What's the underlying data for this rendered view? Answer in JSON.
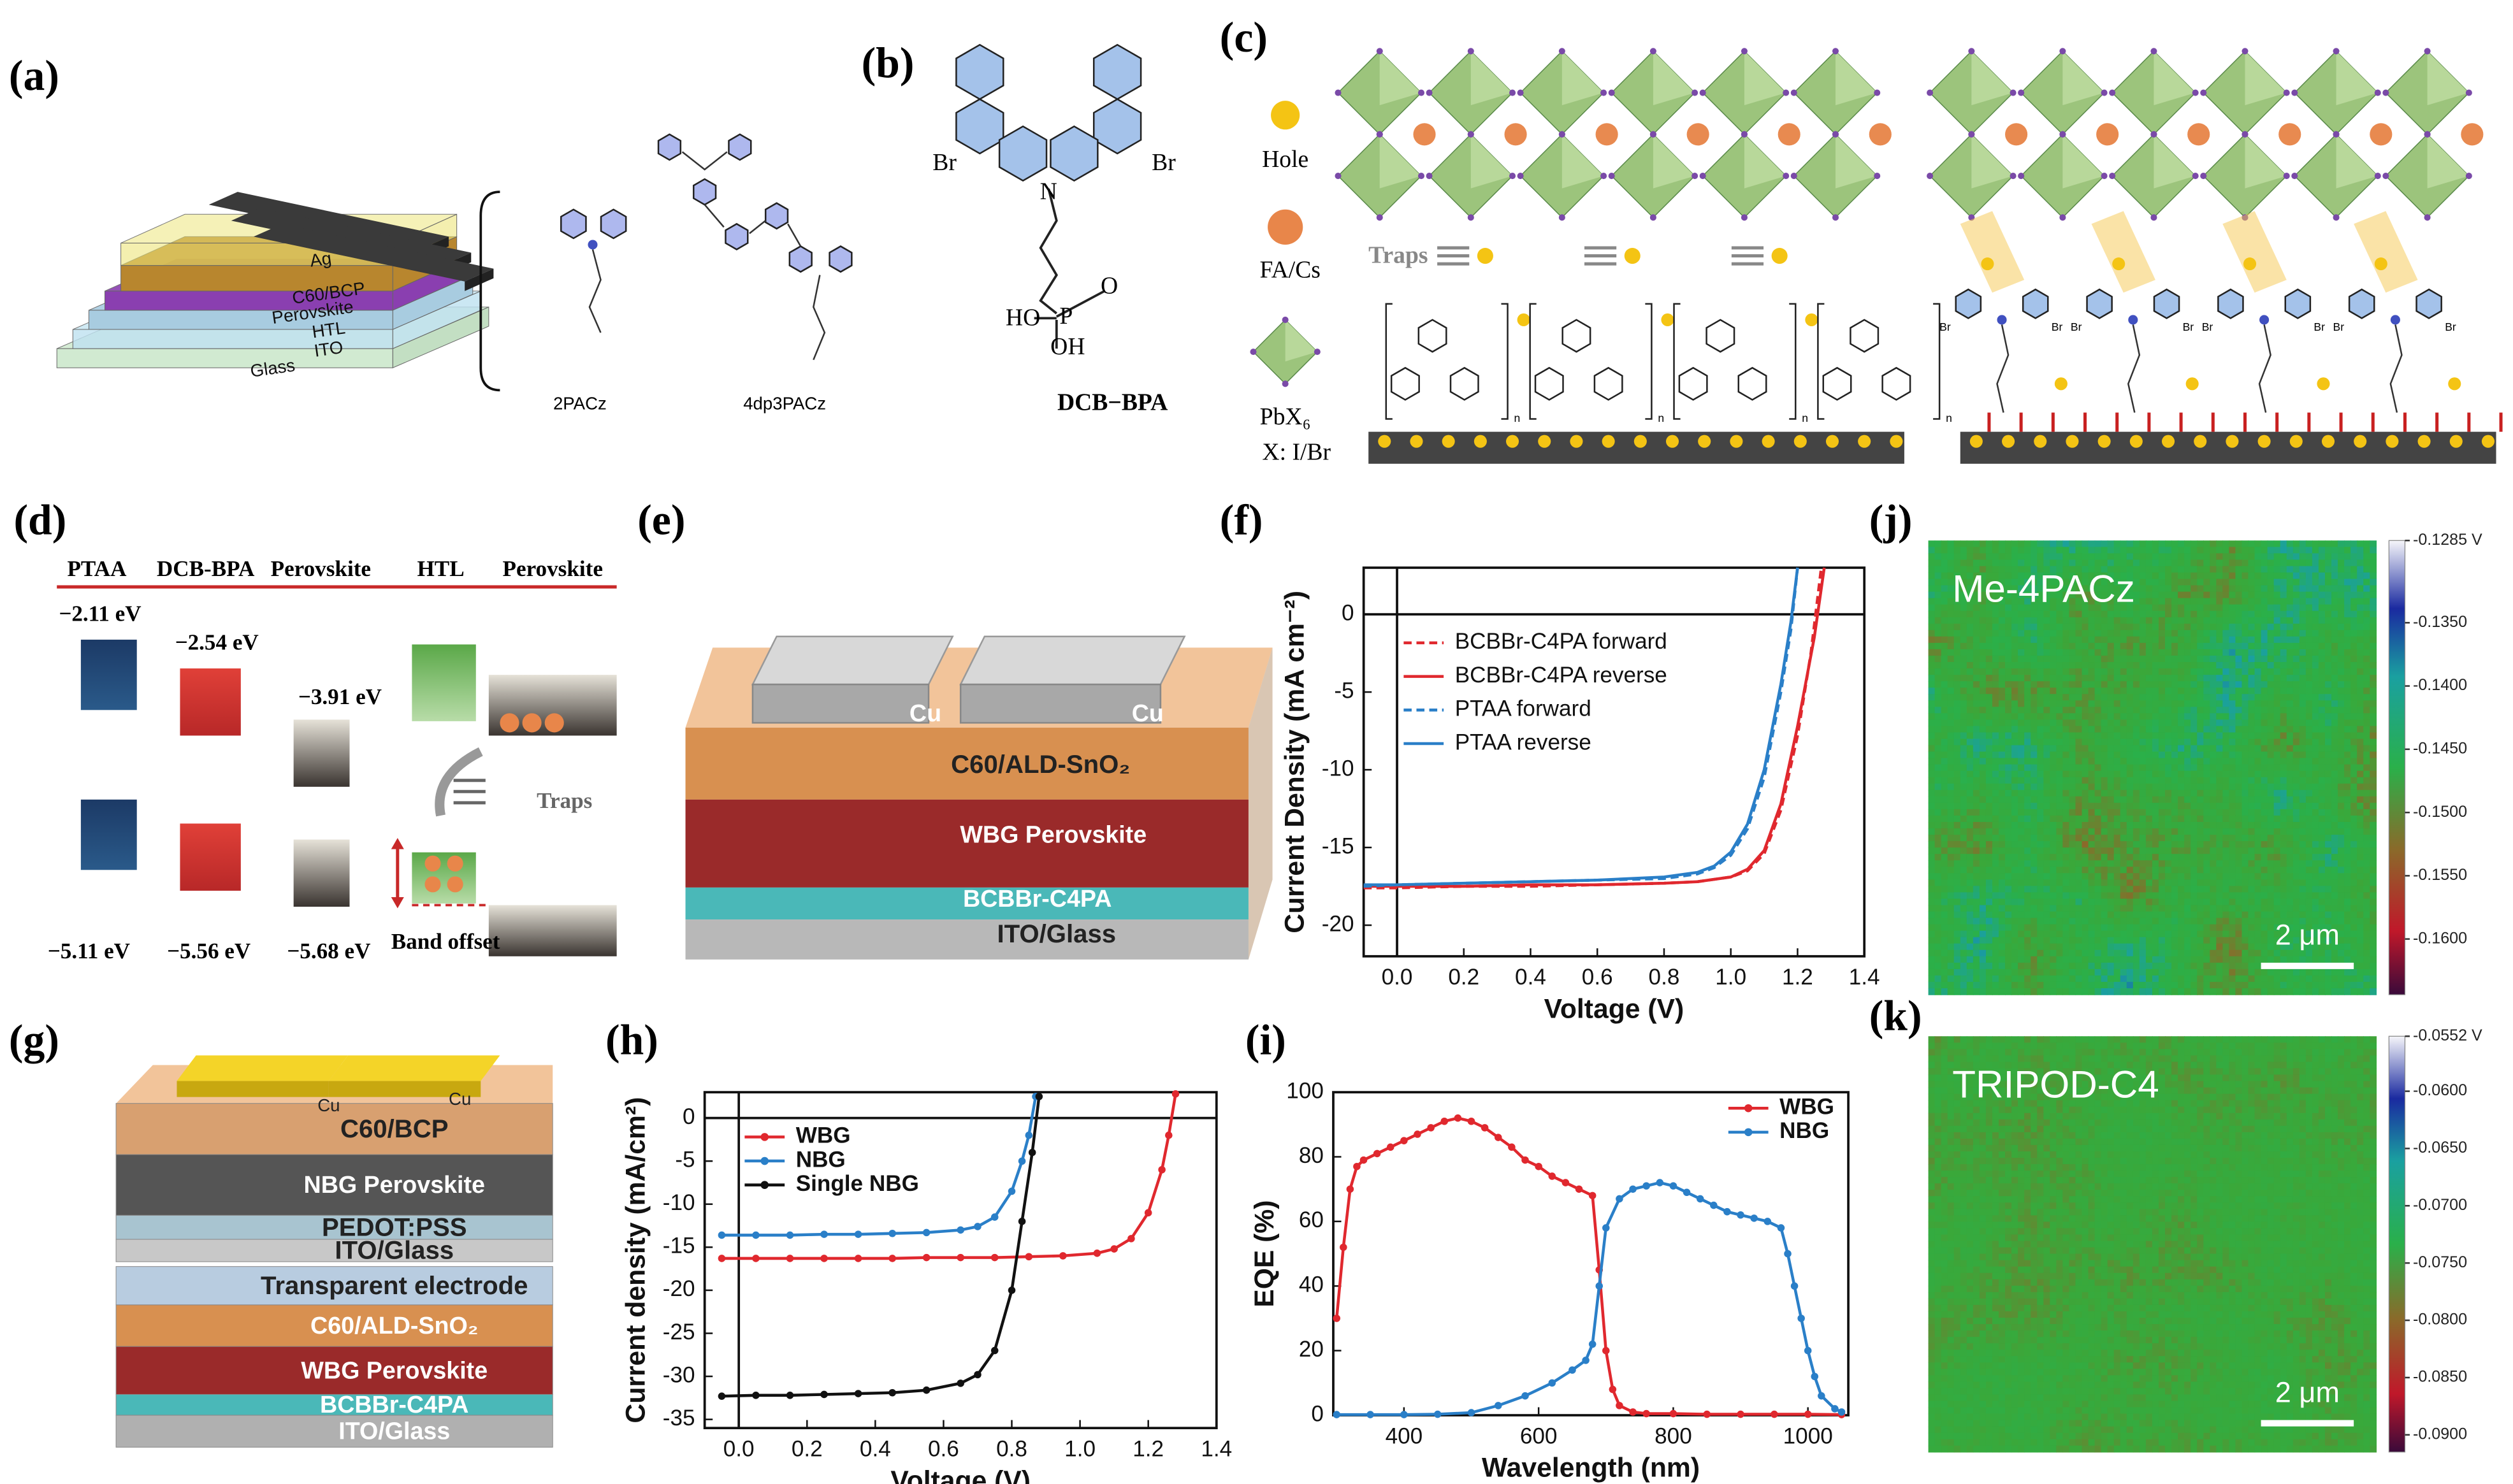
{
  "panel_labels": {
    "a": "(a)",
    "b": "(b)",
    "c": "(c)",
    "d": "(d)",
    "e": "(e)",
    "f": "(f)",
    "g": "(g)",
    "h": "(h)",
    "i": "(i)",
    "j": "(j)",
    "k": "(k)"
  },
  "panel_a": {
    "layers": [
      "Ag",
      "C60/BCP",
      "Perovskite",
      "HTL",
      "ITO",
      "Glass"
    ],
    "molecules": [
      "2PACz",
      "4dp3PACz"
    ]
  },
  "panel_b": {
    "atoms": [
      "Br",
      "Br",
      "N",
      "HO",
      "P",
      "O",
      "OH"
    ],
    "name": "DCB−BPA"
  },
  "panel_c": {
    "legend": [
      "Hole",
      "FA/Cs",
      "PbX₆",
      "X: I/Br"
    ],
    "traps": "Traps",
    "repeat_unit": "n",
    "bromine": "Br"
  },
  "panel_d": {
    "headers": [
      "PTAA",
      "DCB-BPA",
      "Perovskite",
      "HTL",
      "Perovskite"
    ],
    "levels": [
      "−2.11 eV",
      "−2.54 eV",
      "−3.91 eV",
      "−5.11 eV",
      "−5.56 eV",
      "−5.68 eV"
    ],
    "traps": "Traps",
    "band_offset": "Band offset"
  },
  "panel_e": {
    "electrodes": [
      "Cu",
      "Cu"
    ],
    "layers": [
      "C60/ALD-SnO₂",
      "WBG Perovskite",
      "BCBBr-C4PA",
      "ITO/Glass"
    ]
  },
  "panel_g": {
    "electrodes": [
      "Cu",
      "Cu"
    ],
    "layers": [
      "C60/BCP",
      "NBG Perovskite",
      "PEDOT:PSS",
      "ITO/Glass",
      "Transparent  electrode",
      "C60/ALD-SnO₂",
      "WBG Perovskite",
      "BCBBr-C4PA",
      "ITO/Glass"
    ]
  },
  "chart_data": [
    {
      "type": "line",
      "xlabel": "Voltage (V)",
      "ylabel": "Current Density (mA cm⁻²)",
      "xlim": [
        -0.1,
        1.4
      ],
      "ylim": [
        -22,
        3
      ],
      "xticks": [
        {
          "value": 0,
          "label": "0.0"
        },
        0.2,
        0.4,
        0.6,
        0.8,
        {
          "value": 1,
          "label": "1.0"
        },
        1.2,
        1.4
      ],
      "yticks": [
        0,
        -5,
        -10,
        -15,
        -20
      ],
      "zero_lines": true,
      "markers": false,
      "legend": "upper left",
      "series": [
        {
          "name": "BCBBr-C4PA forward",
          "color": "#e0282e",
          "line_style": "dashed",
          "x": [
            -0.1,
            0,
            0.2,
            0.4,
            0.6,
            0.8,
            0.9,
            1.0,
            1.05,
            1.1,
            1.15,
            1.2,
            1.24,
            1.27
          ],
          "values": [
            -17.6,
            -17.6,
            -17.5,
            -17.5,
            -17.4,
            -17.3,
            -17.2,
            -16.9,
            -16.5,
            -15.4,
            -12.6,
            -7.8,
            -2.5,
            2.8
          ]
        },
        {
          "name": "BCBBr-C4PA reverse",
          "color": "#e0282e",
          "line_style": "solid",
          "x": [
            -0.1,
            0,
            0.2,
            0.4,
            0.6,
            0.8,
            0.9,
            1.0,
            1.05,
            1.1,
            1.15,
            1.2,
            1.25,
            1.28
          ],
          "values": [
            -17.5,
            -17.5,
            -17.5,
            -17.4,
            -17.4,
            -17.3,
            -17.2,
            -16.9,
            -16.4,
            -15.2,
            -12.2,
            -7.2,
            -1.5,
            3
          ]
        },
        {
          "name": "PTAA forward",
          "color": "#2a7fc8",
          "line_style": "dashed",
          "x": [
            -0.1,
            0,
            0.2,
            0.4,
            0.6,
            0.8,
            0.9,
            0.95,
            1.0,
            1.05,
            1.1,
            1.15,
            1.18,
            1.2
          ],
          "values": [
            -17.5,
            -17.4,
            -17.3,
            -17.2,
            -17.1,
            -17.0,
            -16.7,
            -16.3,
            -15.5,
            -13.8,
            -10.5,
            -5,
            -1,
            3
          ]
        },
        {
          "name": "PTAA reverse",
          "color": "#2a7fc8",
          "line_style": "solid",
          "x": [
            -0.1,
            0,
            0.2,
            0.4,
            0.6,
            0.8,
            0.9,
            0.95,
            1.0,
            1.05,
            1.1,
            1.15,
            1.18,
            1.2
          ],
          "values": [
            -17.4,
            -17.4,
            -17.3,
            -17.2,
            -17.1,
            -16.9,
            -16.6,
            -16.2,
            -15.3,
            -13.5,
            -10,
            -4.5,
            -0.5,
            3
          ]
        }
      ]
    },
    {
      "type": "line",
      "xlabel": "Voltage (V)",
      "ylabel": "Current density (mA/cm²)",
      "xlim": [
        -0.1,
        1.4
      ],
      "ylim": [
        -36,
        3
      ],
      "xticks": [
        {
          "value": 0,
          "label": "0.0"
        },
        0.2,
        0.4,
        0.6,
        0.8,
        {
          "value": 1,
          "label": "1.0"
        },
        1.2,
        1.4
      ],
      "yticks": [
        0,
        -5,
        -10,
        -15,
        -20,
        -25,
        -30,
        -35
      ],
      "zero_lines": true,
      "markers": true,
      "legend": "upper left",
      "series": [
        {
          "name": "WBG",
          "color": "#e0282e",
          "line_style": "solid",
          "x": [
            -0.05,
            0.05,
            0.15,
            0.25,
            0.35,
            0.45,
            0.55,
            0.65,
            0.75,
            0.85,
            0.95,
            1.05,
            1.1,
            1.15,
            1.2,
            1.24,
            1.26,
            1.28
          ],
          "values": [
            -16.3,
            -16.3,
            -16.3,
            -16.3,
            -16.3,
            -16.3,
            -16.2,
            -16.2,
            -16.2,
            -16.1,
            -16.0,
            -15.7,
            -15.2,
            -14,
            -11,
            -6,
            -2,
            2.8
          ]
        },
        {
          "name": "NBG",
          "color": "#2a7fc8",
          "line_style": "solid",
          "x": [
            -0.05,
            0.05,
            0.15,
            0.25,
            0.35,
            0.45,
            0.55,
            0.65,
            0.7,
            0.75,
            0.8,
            0.83,
            0.85,
            0.87
          ],
          "values": [
            -13.6,
            -13.6,
            -13.6,
            -13.5,
            -13.5,
            -13.4,
            -13.3,
            -13.0,
            -12.6,
            -11.5,
            -8.5,
            -5,
            -2,
            2.5
          ]
        },
        {
          "name": "Single NBG",
          "color": "#111111",
          "line_style": "solid",
          "x": [
            -0.05,
            0.05,
            0.15,
            0.25,
            0.35,
            0.45,
            0.55,
            0.65,
            0.7,
            0.75,
            0.8,
            0.83,
            0.86,
            0.88
          ],
          "values": [
            -32.3,
            -32.2,
            -32.2,
            -32.1,
            -32.0,
            -31.9,
            -31.6,
            -30.8,
            -29.8,
            -27,
            -20,
            -12,
            -4,
            2.5
          ]
        }
      ]
    },
    {
      "type": "line",
      "xlabel": "Wavelength (nm)",
      "ylabel": "EQE (%)",
      "xlim": [
        295,
        1060
      ],
      "ylim": [
        0,
        100
      ],
      "xticks": [
        400,
        600,
        800,
        1000
      ],
      "yticks": [
        0,
        20,
        40,
        60,
        80,
        100
      ],
      "zero_lines": false,
      "markers": true,
      "legend": "upper right",
      "series": [
        {
          "name": "WBG",
          "color": "#e0282e",
          "line_style": "solid",
          "x": [
            300,
            310,
            320,
            330,
            340,
            360,
            380,
            400,
            420,
            440,
            460,
            480,
            500,
            520,
            540,
            560,
            580,
            600,
            620,
            640,
            660,
            680,
            690,
            700,
            710,
            720,
            740,
            760,
            800,
            850,
            900,
            950,
            1000,
            1050
          ],
          "values": [
            30,
            52,
            70,
            77,
            79,
            81,
            83,
            85,
            87,
            89,
            91,
            92,
            91,
            89,
            86,
            83,
            79,
            77,
            74,
            72,
            70,
            68,
            45,
            20,
            8,
            3,
            1,
            0.5,
            0.5,
            0.3,
            0.3,
            0.3,
            0.3,
            0.2
          ]
        },
        {
          "name": "NBG",
          "color": "#2a7fc8",
          "line_style": "solid",
          "x": [
            300,
            350,
            400,
            450,
            500,
            540,
            580,
            620,
            650,
            670,
            680,
            690,
            700,
            720,
            740,
            760,
            780,
            800,
            820,
            840,
            860,
            880,
            900,
            920,
            940,
            960,
            970,
            980,
            990,
            1000,
            1010,
            1020,
            1040,
            1050
          ],
          "values": [
            0.2,
            0.2,
            0.2,
            0.3,
            0.8,
            3,
            6,
            10,
            14,
            17,
            22,
            40,
            58,
            67,
            70,
            71,
            72,
            71,
            69,
            67,
            65,
            63,
            62,
            61,
            60,
            58,
            50,
            40,
            30,
            20,
            12,
            6,
            2,
            1
          ]
        }
      ]
    }
  ],
  "maps": [
    {
      "label": "Me-4PACz",
      "scale_bar": "2 μm",
      "clim": [
        -0.1644,
        -0.1285
      ],
      "colorbar_ticks": [
        {
          "value": -0.1285,
          "label": "-0.1285 V"
        },
        {
          "value": -0.135,
          "label": "-0.1350"
        },
        {
          "value": -0.14,
          "label": "-0.1400"
        },
        {
          "value": -0.145,
          "label": "-0.1450"
        },
        {
          "value": -0.15,
          "label": "-0.1500"
        },
        {
          "value": -0.155,
          "label": "-0.1550"
        },
        {
          "value": -0.16,
          "label": "-0.1600"
        }
      ]
    },
    {
      "label": "TRIPOD-C4",
      "scale_bar": "2 μm",
      "clim": [
        -0.0915,
        -0.0552
      ],
      "colorbar_ticks": [
        {
          "value": -0.0552,
          "label": "-0.0552 V"
        },
        {
          "value": -0.06,
          "label": "-0.0600"
        },
        {
          "value": -0.065,
          "label": "-0.0650"
        },
        {
          "value": -0.07,
          "label": "-0.0700"
        },
        {
          "value": -0.075,
          "label": "-0.0750"
        },
        {
          "value": -0.08,
          "label": "-0.0800"
        },
        {
          "value": -0.085,
          "label": "-0.0850"
        },
        {
          "value": -0.09,
          "label": "-0.0900"
        }
      ]
    }
  ]
}
